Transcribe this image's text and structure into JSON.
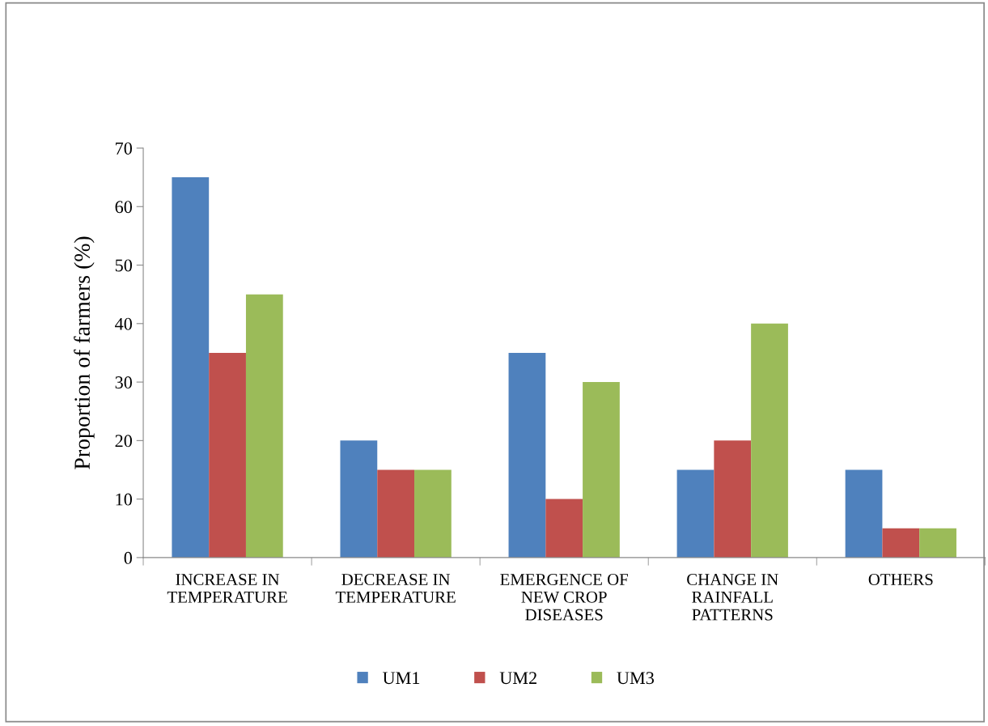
{
  "chart_data": {
    "type": "bar",
    "ylabel": "Proportion of farmers (%)",
    "categories": [
      "INCREASE IN\nTEMPERATURE",
      "DECREASE IN\nTEMPERATURE",
      "EMERGENCE OF\nNEW CROP\nDISEASES",
      "CHANGE IN\nRAINFALL\nPATTERNS",
      "OTHERS"
    ],
    "series": [
      {
        "name": "UM1",
        "color": "#4f81bd",
        "values": [
          65,
          20,
          35,
          15,
          15
        ]
      },
      {
        "name": "UM2",
        "color": "#c0504d",
        "values": [
          35,
          15,
          10,
          20,
          5
        ]
      },
      {
        "name": "UM3",
        "color": "#9bbb59",
        "values": [
          45,
          15,
          30,
          40,
          5
        ]
      }
    ],
    "ylim": [
      0,
      70
    ],
    "yticks": [
      0,
      10,
      20,
      30,
      40,
      50,
      60,
      70
    ],
    "grid": false,
    "legend": "bottom"
  }
}
